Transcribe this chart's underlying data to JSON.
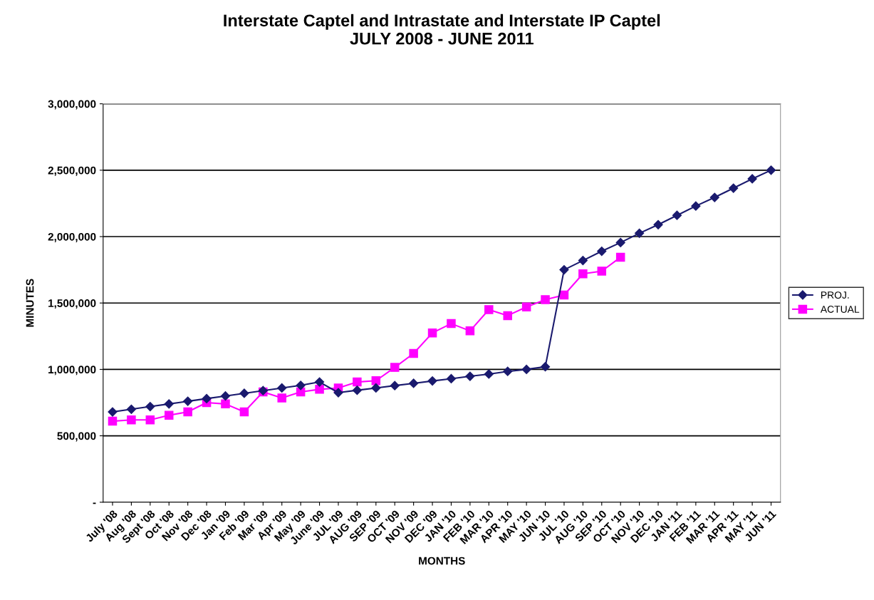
{
  "chart_data": {
    "type": "line",
    "title": "Interstate Captel and Intrastate and Interstate IP Captel\nJULY 2008 - JUNE 2011",
    "xlabel": "MONTHS",
    "ylabel": "MINUTES",
    "categories": [
      "July '08",
      "Aug '08",
      "Sept '08",
      "Oct '08",
      "Nov '08",
      "Dec '08",
      "Jan '09",
      "Feb '09",
      "Mar '09",
      "Apr '09",
      "May '09",
      "June '09",
      "JUL '09",
      "AUG '09",
      "SEP '09",
      "OCT '09",
      "NOV '09",
      "DEC '09",
      "JAN '10",
      "FEB '10",
      "MAR '10",
      "APR '10",
      "MAY '10",
      "JUN '10",
      "JUL '10",
      "AUG '10",
      "SEP '10",
      "OCT '10",
      "NOV '10",
      "DEC '10",
      "JAN '11",
      "FEB '11",
      "MAR '11",
      "APR '11",
      "MAY '11",
      "JUN '11"
    ],
    "series": [
      {
        "name": "PROJ.",
        "color": "#1a1a6e",
        "marker": "diamond",
        "values": [
          680000,
          700000,
          720000,
          740000,
          760000,
          780000,
          800000,
          820000,
          840000,
          860000,
          880000,
          905000,
          825000,
          843000,
          860000,
          878000,
          895000,
          913000,
          930000,
          948000,
          965000,
          985000,
          1000000,
          1020000,
          1750000,
          1820000,
          1890000,
          1955000,
          2025000,
          2090000,
          2160000,
          2230000,
          2295000,
          2365000,
          2435000,
          2500000
        ]
      },
      {
        "name": "ACTUAL",
        "color": "#ff00ff",
        "marker": "square",
        "values": [
          610000,
          620000,
          620000,
          655000,
          680000,
          750000,
          740000,
          680000,
          830000,
          785000,
          830000,
          850000,
          860000,
          905000,
          915000,
          1015000,
          1120000,
          1275000,
          1345000,
          1290000,
          1450000,
          1405000,
          1470000,
          1525000,
          1560000,
          1720000,
          1740000,
          1845000,
          null,
          null,
          null,
          null,
          null,
          null,
          null,
          null
        ]
      }
    ],
    "ylim": [
      0,
      3000000
    ],
    "yticks": [
      {
        "value": 0,
        "label": "-"
      },
      {
        "value": 500000,
        "label": "500,000"
      },
      {
        "value": 1000000,
        "label": "1,000,000"
      },
      {
        "value": 1500000,
        "label": "1,500,000"
      },
      {
        "value": 2000000,
        "label": "2,000,000"
      },
      {
        "value": 2500000,
        "label": "2,500,000"
      },
      {
        "value": 3000000,
        "label": "3,000,000"
      }
    ],
    "grid": "y",
    "legend": "right",
    "line_style": "solid"
  }
}
